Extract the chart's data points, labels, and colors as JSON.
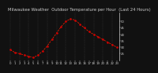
{
  "title": "Milwaukee Weather  Outdoor Temperature per Hour  (Last 24 Hours)",
  "hours": [
    0,
    1,
    2,
    3,
    4,
    5,
    6,
    7,
    8,
    9,
    10,
    11,
    12,
    13,
    14,
    15,
    16,
    17,
    18,
    19,
    20,
    21,
    22,
    23
  ],
  "temps": [
    28,
    26,
    25,
    24,
    23,
    22,
    24,
    27,
    31,
    36,
    41,
    46,
    50,
    52,
    51,
    48,
    45,
    42,
    40,
    38,
    36,
    34,
    32,
    30
  ],
  "bg_color": "#111111",
  "line_color": "#ff2200",
  "marker_color": "#cc0000",
  "grid_color": "#555555",
  "text_color": "#cccccc",
  "ylim": [
    20,
    57
  ],
  "yticks": [
    25,
    30,
    35,
    40,
    45,
    50
  ],
  "title_fontsize": 3.8,
  "tick_fontsize": 2.8
}
